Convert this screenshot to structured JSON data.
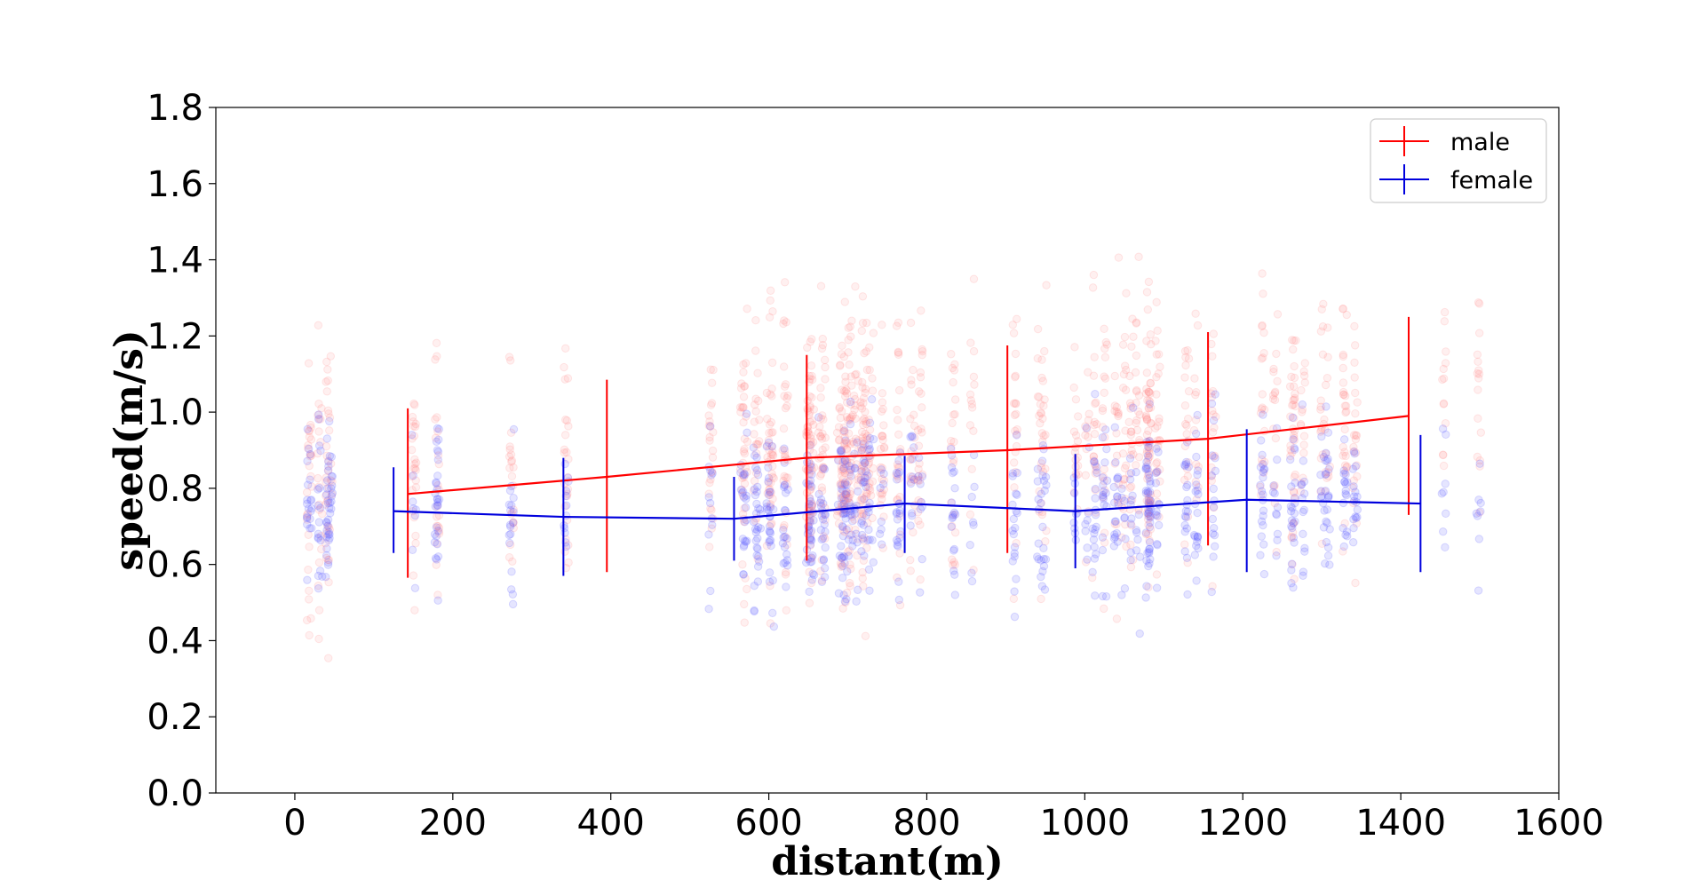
{
  "chart_data": {
    "type": "line",
    "xlabel": "distant(m)",
    "ylabel": "speed(m/s)",
    "xlim": [
      -100,
      1600
    ],
    "ylim": [
      0.0,
      1.8
    ],
    "xticks": [
      0,
      200,
      400,
      600,
      800,
      1000,
      1200,
      1400,
      1600
    ],
    "yticks": [
      0.0,
      0.2,
      0.4,
      0.6,
      0.8,
      1.0,
      1.2,
      1.4,
      1.6,
      1.8
    ],
    "xtick_labels": [
      "0",
      "200",
      "400",
      "600",
      "800",
      "1000",
      "1200",
      "1400",
      "1600"
    ],
    "ytick_labels": [
      "0.0",
      "0.2",
      "0.4",
      "0.6",
      "0.8",
      "1.0",
      "1.2",
      "1.4",
      "1.6",
      "1.8"
    ],
    "legend_position": "top-right",
    "grid": false,
    "series": [
      {
        "name": "male",
        "color": "#ff0000",
        "x": [
          143,
          395,
          648,
          902,
          1156,
          1410
        ],
        "y": [
          0.785,
          0.83,
          0.88,
          0.9,
          0.93,
          0.99
        ],
        "err_low": [
          0.565,
          0.58,
          0.61,
          0.63,
          0.65,
          0.73
        ],
        "err_high": [
          1.01,
          1.085,
          1.15,
          1.175,
          1.21,
          1.25
        ]
      },
      {
        "name": "female",
        "color": "#0000dd",
        "x": [
          125,
          340,
          556,
          772,
          988,
          1205,
          1425
        ],
        "y": [
          0.74,
          0.725,
          0.72,
          0.76,
          0.74,
          0.77,
          0.76
        ],
        "err_low": [
          0.63,
          0.57,
          0.61,
          0.63,
          0.59,
          0.58,
          0.58
        ],
        "err_high": [
          0.855,
          0.88,
          0.83,
          0.885,
          0.89,
          0.955,
          0.94
        ]
      }
    ],
    "scatter_male_color": "#ff8080",
    "scatter_female_color": "#6060ff"
  }
}
